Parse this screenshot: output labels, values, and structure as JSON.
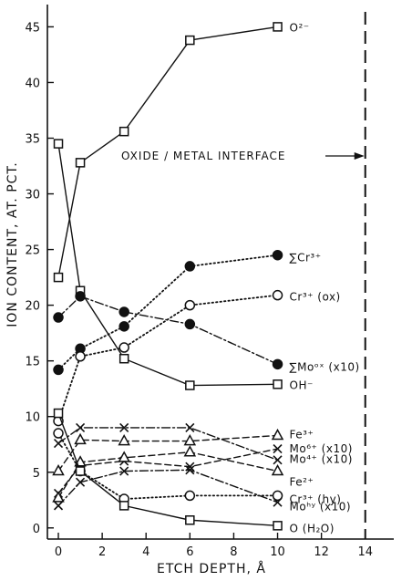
{
  "chart_data": {
    "type": "line",
    "title": "",
    "xlabel": "ETCH DEPTH, Å",
    "ylabel": "ION CONTENT, AT. PCT.",
    "xlim": [
      -0.5,
      15.3
    ],
    "ylim": [
      -1,
      47
    ],
    "x_ticks": [
      0,
      2,
      4,
      6,
      8,
      10,
      12,
      14
    ],
    "y_ticks": [
      0,
      5,
      10,
      15,
      20,
      25,
      30,
      35,
      40,
      45
    ],
    "grid": false,
    "annotations": [
      {
        "text": "OXIDE / METAL INTERFACE",
        "x": 14,
        "y": 33.4,
        "marker": "vertical-dashed-line"
      }
    ],
    "series": [
      {
        "name": "O2-",
        "label_text": "O²⁻",
        "marker": "square-open",
        "style": "solid",
        "filled": false,
        "x": [
          0,
          1,
          3,
          6,
          10
        ],
        "y": [
          22.5,
          32.8,
          35.6,
          43.8,
          45.0
        ]
      },
      {
        "name": "OH-",
        "label_text": "OH⁻",
        "marker": "square-open",
        "style": "solid",
        "filled": false,
        "x": [
          0,
          1,
          3,
          6,
          10
        ],
        "y": [
          34.5,
          21.3,
          15.2,
          12.8,
          12.9
        ]
      },
      {
        "name": "ΣCr3+",
        "label_text": "∑Cr³⁺",
        "marker": "circle-filled",
        "style": "dotted",
        "filled": true,
        "x": [
          0,
          1,
          3,
          6,
          10
        ],
        "y": [
          14.2,
          16.1,
          18.1,
          23.5,
          24.5
        ]
      },
      {
        "name": "Cr3+ (ox)",
        "label_text": "Cr³⁺ (ox)",
        "marker": "circle-open",
        "style": "dotted",
        "filled": false,
        "x": [
          0,
          1,
          3,
          6,
          10
        ],
        "y": [
          9.6,
          15.4,
          16.2,
          20.0,
          20.9
        ]
      },
      {
        "name": "ΣMo ox (x10)",
        "label_text": "∑Moᵒˣ (x10)",
        "marker": "circle-filled",
        "style": "dashdot",
        "filled": true,
        "x": [
          0,
          1,
          3,
          6,
          10
        ],
        "y": [
          18.9,
          20.8,
          19.4,
          18.3,
          14.7
        ]
      },
      {
        "name": "Fe3+",
        "label_text": "Fe³⁺",
        "marker": "triangle-open",
        "style": "dashed",
        "filled": false,
        "x": [
          0,
          1,
          3,
          6,
          10
        ],
        "y": [
          5.1,
          7.9,
          7.8,
          7.8,
          8.3
        ]
      },
      {
        "name": "Mo4+ (x10)",
        "label_text": "Mo⁴⁺ (x10)",
        "marker": "x",
        "style": "dashdot",
        "filled": false,
        "x": [
          0,
          1,
          3,
          6,
          10
        ],
        "y": [
          7.6,
          9.0,
          9.0,
          9.0,
          6.1
        ]
      },
      {
        "name": "Mo6+ (x10)",
        "label_text": "Mo⁶⁺ (x10)",
        "marker": "x",
        "style": "dashed",
        "filled": false,
        "x": [
          0,
          1,
          3,
          6,
          10
        ],
        "y": [
          3.1,
          5.6,
          6.0,
          5.5,
          7.1
        ]
      },
      {
        "name": "Fe2+",
        "label_text": "Fe²⁺",
        "marker": "triangle-open",
        "style": "dashed",
        "filled": false,
        "x": [
          0,
          1,
          3,
          6,
          10
        ],
        "y": [
          2.7,
          5.9,
          6.3,
          6.8,
          5.1
        ]
      },
      {
        "name": "Cr3+ (hy)",
        "label_text": "Cr³⁺ (hy)",
        "marker": "circle-open",
        "style": "dotted",
        "filled": false,
        "x": [
          0,
          1,
          3,
          6,
          10
        ],
        "y": [
          8.5,
          5.1,
          2.6,
          2.9,
          2.9
        ]
      },
      {
        "name": "Mo hy (x10)",
        "label_text": "Moʰʸ (x10)",
        "marker": "x",
        "style": "dashdot",
        "filled": false,
        "x": [
          0,
          1,
          3,
          6,
          10
        ],
        "y": [
          2.0,
          4.1,
          5.1,
          5.2,
          2.3
        ]
      },
      {
        "name": "O (H2O)",
        "label_text": "O (H₂O)",
        "marker": "square-open",
        "style": "solid",
        "filled": false,
        "x": [
          0,
          1,
          3,
          6,
          10
        ],
        "y": [
          10.3,
          5.1,
          2.0,
          0.7,
          0.2
        ]
      }
    ]
  }
}
